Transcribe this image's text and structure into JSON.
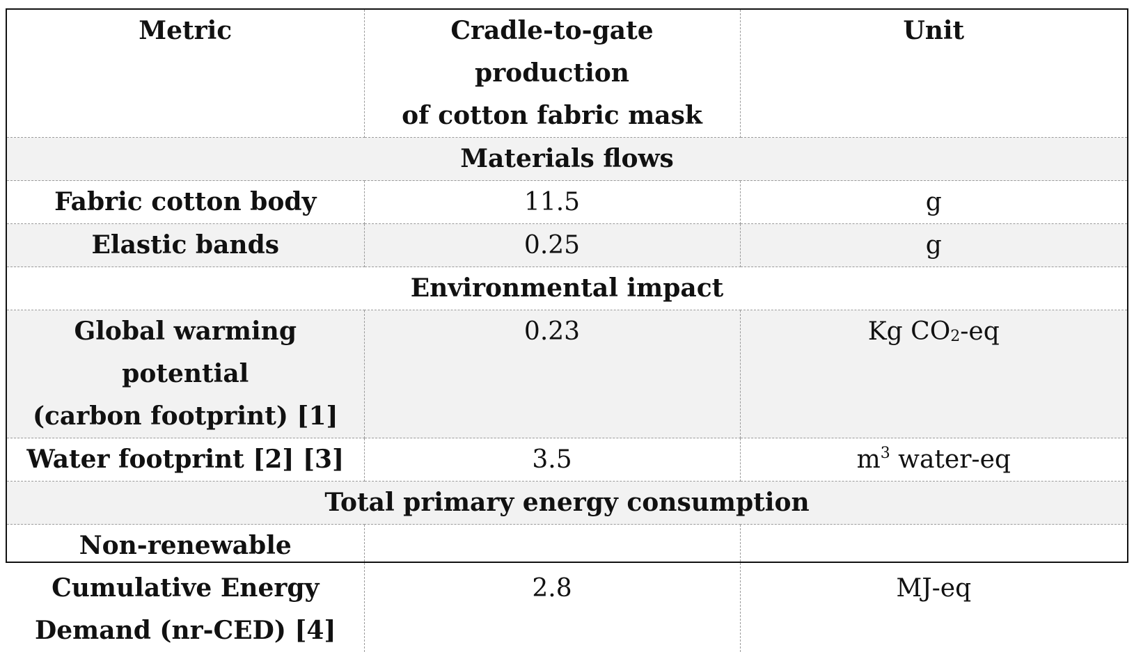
{
  "header": {
    "metric": "Metric",
    "production_line1": "Cradle-to-gate production",
    "production_line2": "of cotton fabric mask",
    "unit": "Unit"
  },
  "sections": {
    "materials": "Materials flows",
    "environmental": "Environmental impact",
    "energy": "Total primary energy consumption"
  },
  "rows": {
    "fabric": {
      "metric": "Fabric cotton body",
      "value": "11.5",
      "unit": "g"
    },
    "elastic": {
      "metric": "Elastic bands",
      "value": "0.25",
      "unit": "g"
    },
    "gwp": {
      "metric_line1": "Global warming potential",
      "metric_line2": "(carbon footprint) [1]",
      "value": "0.23",
      "unit_prefix": "Kg CO",
      "unit_sub": "2",
      "unit_suffix": "-eq"
    },
    "water": {
      "metric": "Water footprint [2] [3]",
      "value": "3.5",
      "unit_prefix": "m",
      "unit_sup": "3",
      "unit_suffix": " water-eq"
    },
    "ced": {
      "metric_line1": "Non-renewable",
      "metric_line2": "Cumulative Energy",
      "metric_line3": "Demand (nr-CED) [4]",
      "value": "2.8",
      "unit": "MJ-eq"
    }
  }
}
